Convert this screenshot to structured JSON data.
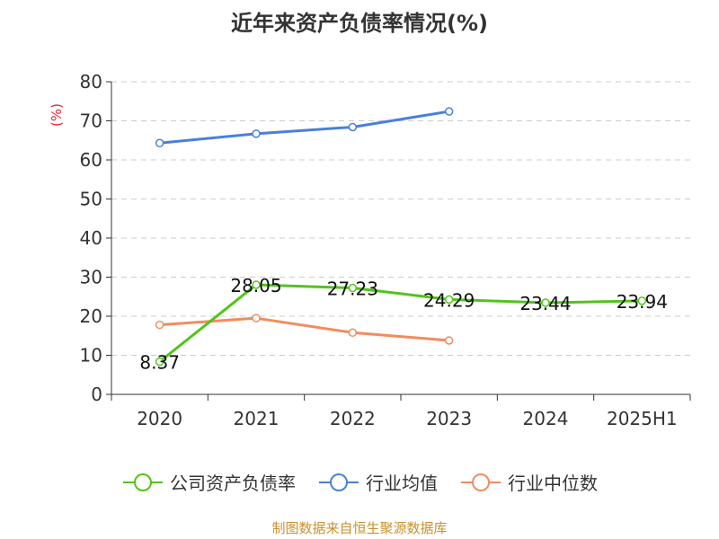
{
  "chart_data": {
    "type": "line",
    "title": "近年来资产负债率情况(%)",
    "ylabel": "(%)",
    "xlabel": "",
    "categories": [
      "2020",
      "2021",
      "2022",
      "2023",
      "2024",
      "2025H1"
    ],
    "ylim": [
      0,
      80
    ],
    "yticks": [
      0,
      10,
      20,
      30,
      40,
      50,
      60,
      70,
      80
    ],
    "grid": true,
    "legend_position": "bottom",
    "series": [
      {
        "name": "公司资产负债率",
        "color": "#52c41a",
        "values": [
          8.37,
          28.05,
          27.23,
          24.29,
          23.44,
          23.94
        ],
        "labels": [
          "8.37",
          "28.05",
          "27.23",
          "24.29",
          "23.44",
          "23.94"
        ]
      },
      {
        "name": "行业均值",
        "color": "#4a7fdc",
        "values": [
          64.3,
          66.7,
          68.4,
          72.4,
          null,
          null
        ]
      },
      {
        "name": "行业中位数",
        "color": "#f28c5e",
        "values": [
          17.8,
          19.5,
          15.8,
          13.8,
          null,
          null
        ]
      }
    ]
  },
  "source": "制图数据来自恒生聚源数据库"
}
